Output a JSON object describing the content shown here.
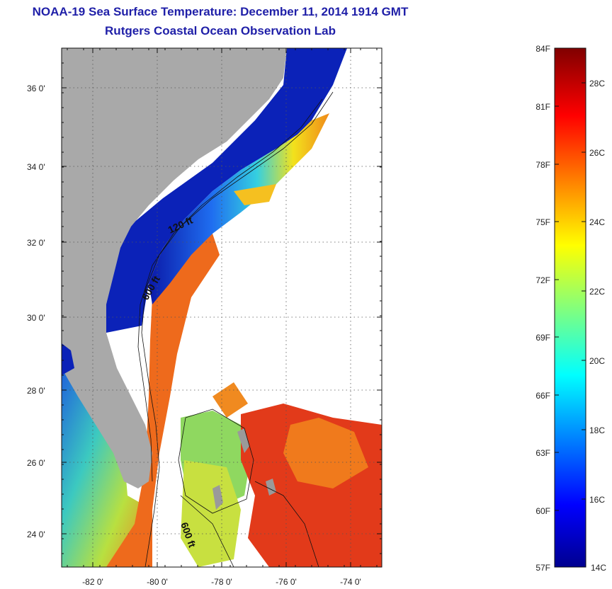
{
  "title": {
    "line1": "NOAA-19 Sea Surface Temperature:  December 11, 2014 1914 GMT",
    "line2": "Rutgers Coastal Ocean Observation Lab"
  },
  "map": {
    "lat_labels": [
      "36 0'",
      "34 0'",
      "32 0'",
      "30 0'",
      "28 0'",
      "26 0'",
      "24 0'"
    ],
    "lon_labels": [
      "-82 0'",
      "-80 0'",
      "-78 0'",
      "-76 0'",
      "-74 0'"
    ],
    "contour_labels": [
      "120 ft",
      "600 ft",
      "600 ft"
    ],
    "colors": {
      "land": "#a9a9a9",
      "cloud": "#ffffff",
      "cold": "#0a1aa0",
      "warm": "#e8401a"
    }
  },
  "colorbar": {
    "fahrenheit": [
      "84F",
      "81F",
      "78F",
      "75F",
      "72F",
      "69F",
      "66F",
      "63F",
      "60F",
      "57F"
    ],
    "celsius": [
      "28C",
      "26C",
      "24C",
      "22C",
      "20C",
      "18C",
      "16C",
      "14C"
    ]
  }
}
